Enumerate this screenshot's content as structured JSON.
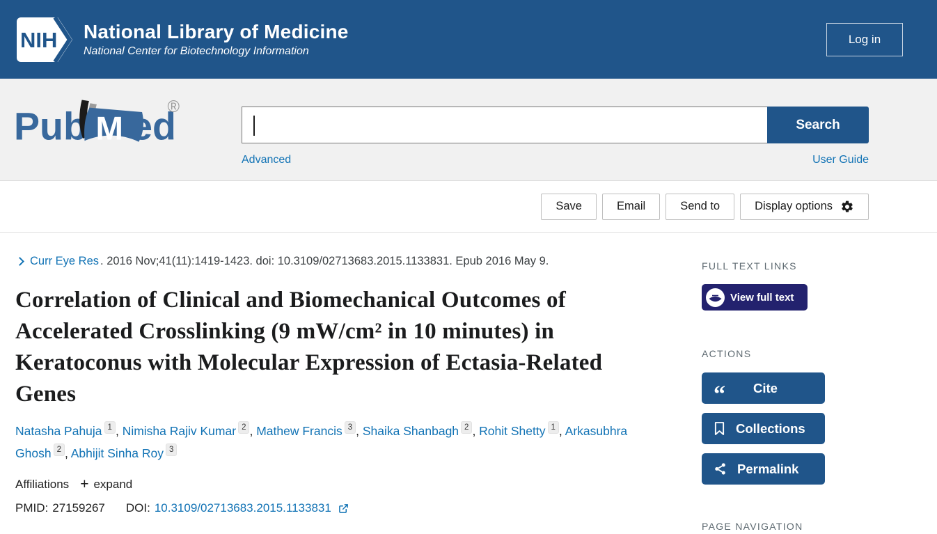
{
  "header": {
    "logo_acronym": "NIH",
    "title": "National Library of Medicine",
    "subtitle": "National Center for Biotechnology Information",
    "login_label": "Log in"
  },
  "search": {
    "logo_pub": "Pub",
    "logo_m": "M",
    "logo_ed": "ed",
    "logo_reg": "®",
    "input_value": "",
    "search_button_label": "Search",
    "advanced_link": "Advanced",
    "user_guide_link": "User Guide"
  },
  "toolbar": {
    "save_label": "Save",
    "email_label": "Email",
    "send_to_label": "Send to",
    "display_options_label": "Display options"
  },
  "article": {
    "journal_link": "Curr Eye Res",
    "citation_rest": ". 2016 Nov;41(11):1419-1423. doi: 10.3109/02713683.2015.1133831. Epub 2016 May 9.",
    "title": "Correlation of Clinical and Biomechanical Outcomes of Accelerated Crosslinking (9 mW/cm² in 10 minutes) in Keratoconus with Molecular Expression of Ectasia-Related Genes",
    "authors": [
      {
        "name": "Natasha Pahuja",
        "sup": "1"
      },
      {
        "name": "Nimisha Rajiv Kumar",
        "sup": "2"
      },
      {
        "name": "Mathew Francis",
        "sup": "3"
      },
      {
        "name": "Shaika Shanbagh",
        "sup": "2"
      },
      {
        "name": "Rohit Shetty",
        "sup": "1"
      },
      {
        "name": "Arkasubhra Ghosh",
        "sup": "2"
      },
      {
        "name": "Abhijit Sinha Roy",
        "sup": "3"
      }
    ],
    "affiliations_label": "Affiliations",
    "expand_label": "expand",
    "pmid_label": "PMID:",
    "pmid_value": "27159267",
    "doi_label": "DOI:",
    "doi_value": "10.3109/02713683.2015.1133831"
  },
  "sidebar": {
    "full_text_links_label": "FULL TEXT LINKS",
    "view_full_text_label": "View full text",
    "actions_label": "ACTIONS",
    "cite_label": "Cite",
    "collections_label": "Collections",
    "permalink_label": "Permalink",
    "page_navigation_label": "PAGE NAVIGATION"
  },
  "colors": {
    "header_blue": "#20558a",
    "link_blue": "#1273b5",
    "full_text_navy": "#23226e",
    "section_gray": "#f1f1f1"
  }
}
